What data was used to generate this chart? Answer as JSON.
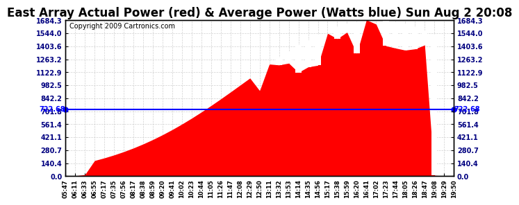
{
  "title": "East Array Actual Power (red) & Average Power (Watts blue) Sun Aug 2 20:08",
  "copyright": "Copyright 2009 Cartronics.com",
  "ymax": 1684.3,
  "ymin": 0.0,
  "yticks": [
    0.0,
    140.4,
    280.7,
    421.1,
    561.4,
    701.8,
    842.2,
    982.5,
    1122.9,
    1263.2,
    1403.6,
    1544.0,
    1684.3
  ],
  "avg_power": 722.68,
  "fill_color": "#FF0000",
  "line_color": "#0000FF",
  "bg_color": "#FFFFFF",
  "grid_color": "#CCCCCC",
  "title_fontsize": 12,
  "copyright_fontsize": 7,
  "xtick_labels": [
    "05:47",
    "06:11",
    "06:33",
    "06:55",
    "07:17",
    "07:35",
    "07:56",
    "08:17",
    "08:38",
    "08:59",
    "09:20",
    "09:41",
    "10:02",
    "10:23",
    "10:44",
    "11:05",
    "11:26",
    "11:47",
    "12:08",
    "12:29",
    "12:50",
    "13:11",
    "13:32",
    "13:53",
    "14:14",
    "14:35",
    "14:56",
    "15:17",
    "15:38",
    "15:59",
    "16:20",
    "16:41",
    "17:02",
    "17:23",
    "17:44",
    "18:05",
    "18:26",
    "18:47",
    "19:08",
    "19:29",
    "19:50"
  ]
}
